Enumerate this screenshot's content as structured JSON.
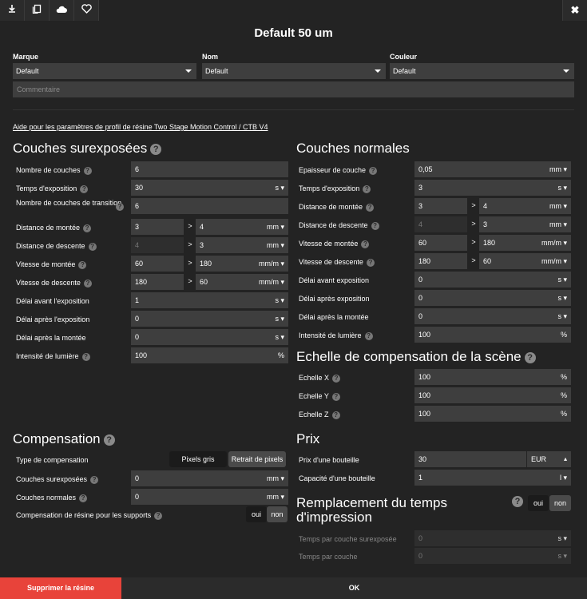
{
  "toolbar": {
    "download": "download-icon",
    "copy": "copy-icon",
    "cloud": "cloud-icon",
    "favorite": "heart-icon",
    "close": "✖"
  },
  "title": "Default 50 um",
  "brand": {
    "label": "Marque",
    "value": "Default"
  },
  "name": {
    "label": "Nom",
    "value": "Default"
  },
  "color": {
    "label": "Couleur",
    "value": "Default"
  },
  "comment_placeholder": "Commentaire",
  "help_link": "Aide pour les paramètres de profil de résine Two Stage Motion Control / CTB V4",
  "over": {
    "title": "Couches surexposées",
    "count": {
      "label": "Nombre de couches",
      "value": "6"
    },
    "exposure": {
      "label": "Temps d'exposition",
      "value": "30",
      "unit": "s"
    },
    "transition": {
      "label": "Nombre de couches de transition",
      "value": "6"
    },
    "lift_dist": {
      "label": "Distance de montée",
      "v1": "3",
      "v2": "4",
      "unit": "mm"
    },
    "retract_dist": {
      "label": "Distance de descente",
      "v1": "4",
      "v2": "3",
      "unit": "mm"
    },
    "lift_speed": {
      "label": "Vitesse de montée",
      "v1": "60",
      "v2": "180",
      "unit": "mm/m"
    },
    "retract_speed": {
      "label": "Vitesse de descente",
      "v1": "180",
      "v2": "60",
      "unit": "mm/m"
    },
    "wait_before": {
      "label": "Délai avant l'exposition",
      "value": "1",
      "unit": "s"
    },
    "wait_after": {
      "label": "Délai après l'exposition",
      "value": "0",
      "unit": "s"
    },
    "wait_lift": {
      "label": "Délai après la montée",
      "value": "0",
      "unit": "s"
    },
    "intensity": {
      "label": "Intensité de lumière",
      "value": "100",
      "unit": "%"
    }
  },
  "normal": {
    "title": "Couches normales",
    "thickness": {
      "label": "Epaisseur de couche",
      "value": "0,05",
      "unit": "mm"
    },
    "exposure": {
      "label": "Temps d'exposition",
      "value": "3",
      "unit": "s"
    },
    "lift_dist": {
      "label": "Distance de montée",
      "v1": "3",
      "v2": "4",
      "unit": "mm"
    },
    "retract_dist": {
      "label": "Distance de descente",
      "v1": "4",
      "v2": "3",
      "unit": "mm"
    },
    "lift_speed": {
      "label": "Vitesse de montée",
      "v1": "60",
      "v2": "180",
      "unit": "mm/m"
    },
    "retract_speed": {
      "label": "Vitesse de descente",
      "v1": "180",
      "v2": "60",
      "unit": "mm/m"
    },
    "wait_before": {
      "label": "Délai avant exposition",
      "value": "0",
      "unit": "s"
    },
    "wait_after": {
      "label": "Délai après exposition",
      "value": "0",
      "unit": "s"
    },
    "wait_lift": {
      "label": "Délai après la montée",
      "value": "0",
      "unit": "s"
    },
    "intensity": {
      "label": "Intensité de lumière",
      "value": "100",
      "unit": "%"
    }
  },
  "scale": {
    "title": "Echelle de compensation de la scène",
    "x": {
      "label": "Echelle X",
      "value": "100",
      "unit": "%"
    },
    "y": {
      "label": "Echelle Y",
      "value": "100",
      "unit": "%"
    },
    "z": {
      "label": "Echelle Z",
      "value": "100",
      "unit": "%"
    }
  },
  "comp": {
    "title": "Compensation",
    "type_label": "Type de compensation",
    "opt1": "Pixels gris",
    "opt2": "Retrait de pixels",
    "over": {
      "label": "Couches surexposées",
      "value": "0",
      "unit": "mm"
    },
    "normal": {
      "label": "Couches normales",
      "value": "0",
      "unit": "mm"
    },
    "supports_label": "Compensation de résine pour les supports",
    "yes": "oui",
    "no": "non"
  },
  "price": {
    "title": "Prix",
    "bottle_price": {
      "label": "Prix d'une bouteille",
      "value": "30",
      "currency": "EUR"
    },
    "capacity": {
      "label": "Capacité d'une bouteille",
      "value": "1",
      "unit": "l"
    }
  },
  "replace": {
    "title": "Remplacement du temps d'impression",
    "yes": "oui",
    "no": "non",
    "over": {
      "label": "Temps par couche surexposée",
      "value": "0",
      "unit": "s"
    },
    "normal": {
      "label": "Temps par couche",
      "value": "0",
      "unit": "s"
    }
  },
  "footer": {
    "delete": "Supprimer la résine",
    "ok": "OK"
  },
  "colors": {
    "accent": "#e8433a",
    "bg": "#232323",
    "field": "#3e3e3e"
  }
}
